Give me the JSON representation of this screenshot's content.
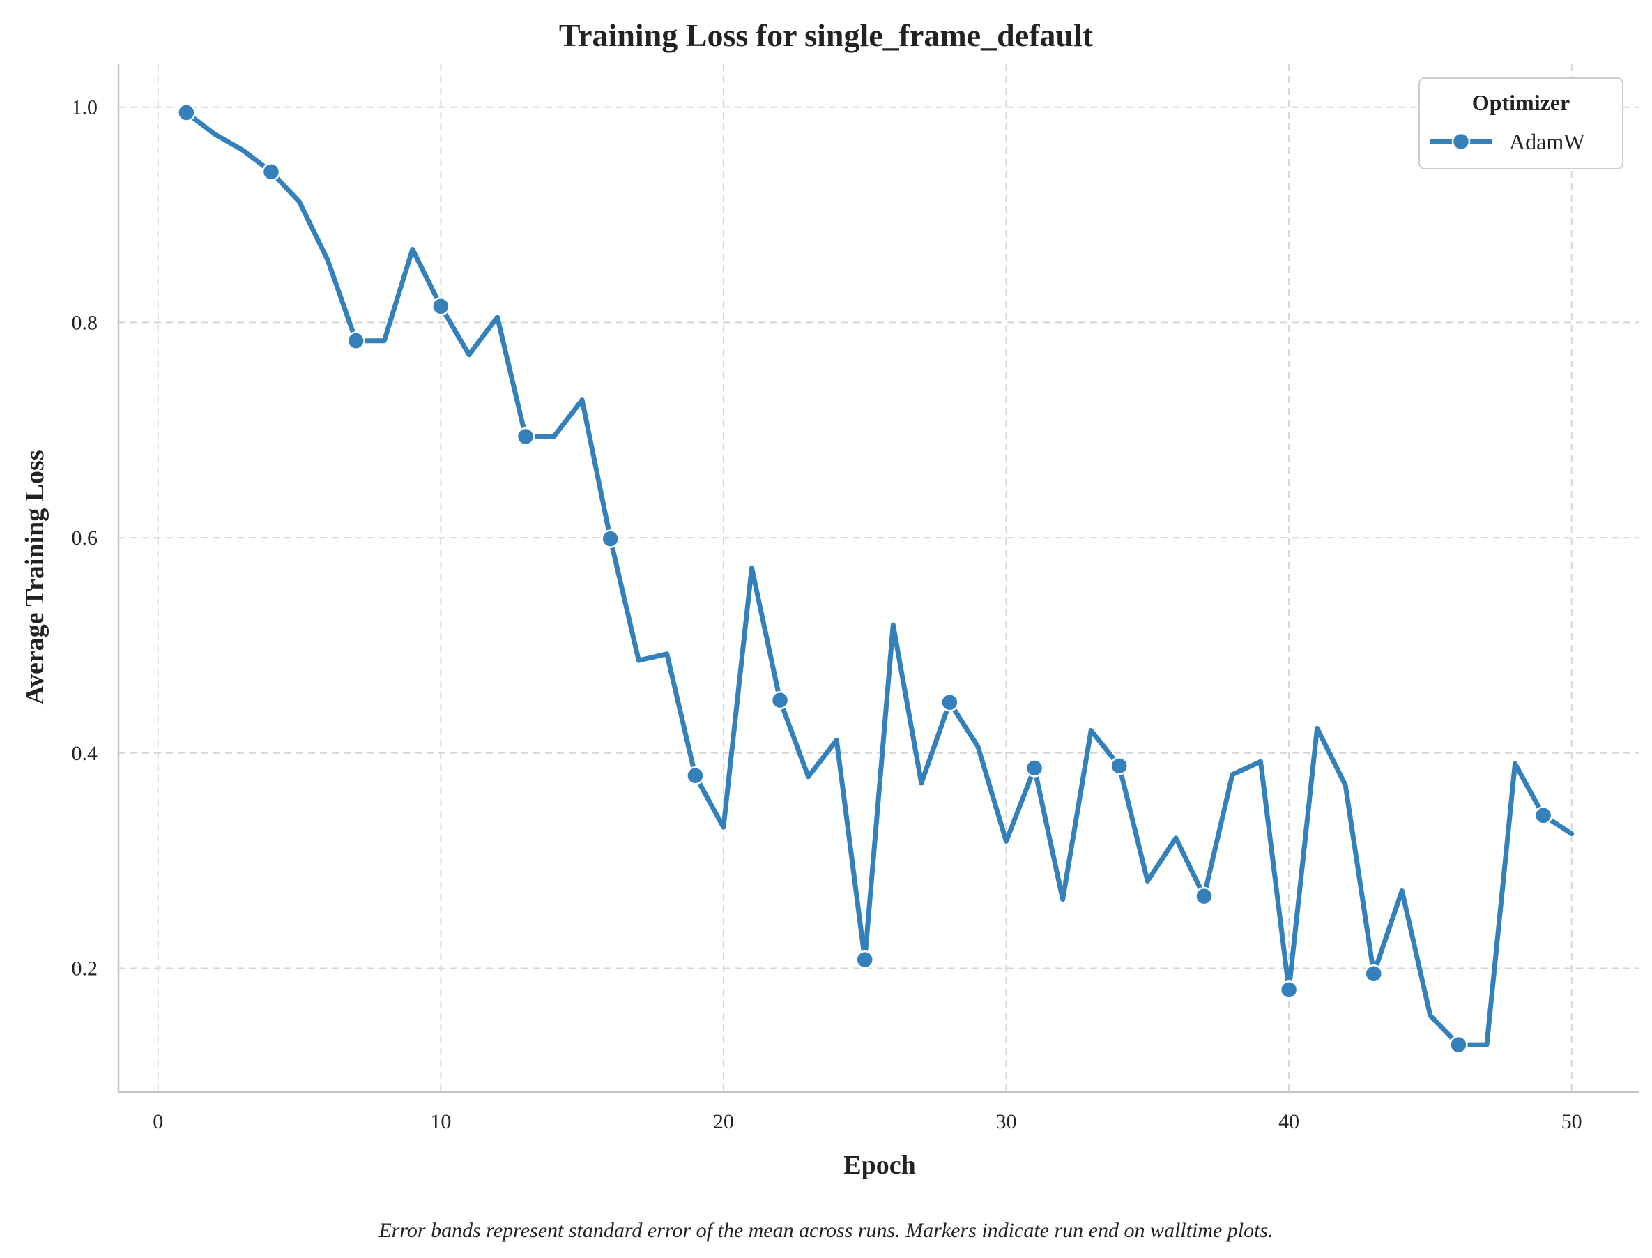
{
  "chart_data": {
    "type": "line",
    "title": "Training Loss for single_frame_default",
    "xlabel": "Epoch",
    "ylabel": "Average Training Loss",
    "xlim": [
      -1.4,
      52.4
    ],
    "ylim": [
      0.085,
      1.04
    ],
    "xticks": [
      0,
      10,
      20,
      30,
      40,
      50
    ],
    "xtick_labels": [
      "0",
      "10",
      "20",
      "30",
      "40",
      "50"
    ],
    "yticks": [
      0.2,
      0.4,
      0.6,
      0.8,
      1.0
    ],
    "ytick_labels": [
      "0.2",
      "0.4",
      "0.6",
      "0.8",
      "1.0"
    ],
    "grid": true,
    "legend": {
      "title": "Optimizer",
      "placement": "top-right"
    },
    "caption": "Error bands represent standard error of the mean across runs. Markers indicate run end on walltime plots.",
    "color": "#3380bb",
    "series": [
      {
        "name": "AdamW",
        "x": [
          1,
          2,
          3,
          4,
          5,
          6,
          7,
          8,
          9,
          10,
          11,
          12,
          13,
          14,
          15,
          16,
          17,
          18,
          19,
          20,
          21,
          22,
          23,
          24,
          25,
          26,
          27,
          28,
          29,
          30,
          31,
          32,
          33,
          34,
          35,
          36,
          37,
          38,
          39,
          40,
          41,
          42,
          43,
          44,
          45,
          46,
          47,
          48,
          49,
          50
        ],
        "y": [
          0.995,
          0.975,
          0.96,
          0.94,
          0.912,
          0.858,
          0.783,
          0.783,
          0.868,
          0.815,
          0.77,
          0.805,
          0.694,
          0.694,
          0.728,
          0.599,
          0.486,
          0.492,
          0.379,
          0.331,
          0.572,
          0.449,
          0.378,
          0.412,
          0.208,
          0.519,
          0.372,
          0.447,
          0.406,
          0.318,
          0.386,
          0.264,
          0.421,
          0.388,
          0.281,
          0.321,
          0.267,
          0.38,
          0.392,
          0.18,
          0.423,
          0.37,
          0.195,
          0.272,
          0.156,
          0.129,
          0.129,
          0.39,
          0.342,
          0.325
        ],
        "marker_x": [
          1,
          4,
          7,
          10,
          13,
          16,
          19,
          22,
          25,
          28,
          31,
          34,
          37,
          40,
          43,
          46,
          49
        ]
      }
    ]
  }
}
